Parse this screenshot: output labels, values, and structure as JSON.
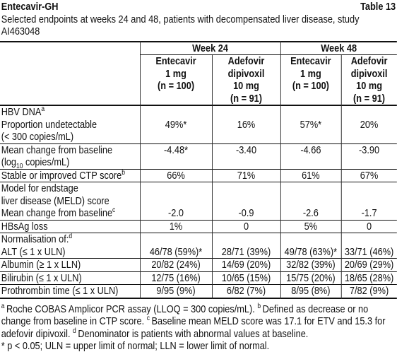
{
  "header": {
    "title": "Entecavir-GH",
    "table_number": "Table 13",
    "subtitle": "Selected endpoints at weeks 24 and 48, patients with decompensated liver disease, study AI463048"
  },
  "table": {
    "groups": [
      "Week 24",
      "Week 48"
    ],
    "columns": [
      [
        "Entecavir",
        "1 mg",
        "(n = 100)"
      ],
      [
        "Adefovir",
        "dipivoxil",
        "10 mg",
        "(n = 91)"
      ],
      [
        "Entecavir",
        "1 mg",
        "(n = 100)"
      ],
      [
        "Adefovir",
        "dipivoxil",
        "10 mg",
        "(n = 91)"
      ]
    ],
    "rows": [
      {
        "label": [
          "HBV DNA"
        ],
        "sup": "a"
      },
      {
        "label": [
          "Proportion undetectable",
          "(< 300 copies/mL)"
        ],
        "values": [
          "49%*",
          "16%",
          "57%*",
          "20%"
        ]
      },
      {
        "label": [
          "Mean change from baseline",
          {
            "text": "(log",
            "sub": "10",
            "after": " copies/mL)"
          }
        ],
        "values": [
          "-4.48*",
          "-3.40",
          "-4.66",
          "-3.90"
        ]
      },
      {
        "label": [
          "Stable or improved CTP score"
        ],
        "sup": "b",
        "values": [
          "66%",
          "71%",
          "61%",
          "67%"
        ]
      },
      {
        "label": [
          "Model for endstage",
          "liver disease (MELD) score"
        ]
      },
      {
        "label": [
          "Mean change from baseline"
        ],
        "sup": "c",
        "values": [
          "-2.0",
          "-0.9",
          "-2.6",
          "-1.7"
        ]
      },
      {
        "label": [
          "HBsAg loss"
        ],
        "values": [
          "1%",
          "0",
          "5%",
          "0"
        ]
      },
      {
        "label": [
          "Normalisation of:"
        ],
        "sup": "d"
      },
      {
        "label": [
          "ALT (≤ 1 x ULN)"
        ],
        "values": [
          "46/78 (59%)*",
          "28/71 (39%)",
          "49/78 (63%)*",
          "33/71 (46%)"
        ]
      },
      {
        "label": [
          "Albumin (≥ 1 x LLN)"
        ],
        "values": [
          "20/82 (24%)",
          "14/69 (20%)",
          "32/82 (39%)",
          "20/69 (29%)"
        ]
      },
      {
        "label": [
          "Bilirubin (≤ 1 x ULN)"
        ],
        "values": [
          "12/75 (16%)",
          "10/65 (15%)",
          "15/75 (20%)",
          "18/65 (28%)"
        ]
      },
      {
        "label": [
          "Prothrombin time (≤ 1 x ULN)"
        ],
        "values": [
          "9/95 (9%)",
          "6/82 (7%)",
          "8/95 (8%)",
          "7/82 (9%)"
        ]
      }
    ]
  },
  "footnotes": [
    {
      "mark": "a",
      "text": "Roche COBAS Amplicor PCR assay (LLOQ = 300 copies/mL)."
    },
    {
      "mark": "b",
      "text": "Defined as decrease or no change from baseline in CTP score."
    },
    {
      "mark": "c",
      "text": "Baseline mean MELD score was 17.1 for ETV and 15.3 for adefovir dipivoxil."
    },
    {
      "mark": "d",
      "text": "Denominator is patients with abnormal values at baseline."
    }
  ],
  "note": "* p < 0.05; ULN = upper limit of normal; LLN = lower limit of normal."
}
